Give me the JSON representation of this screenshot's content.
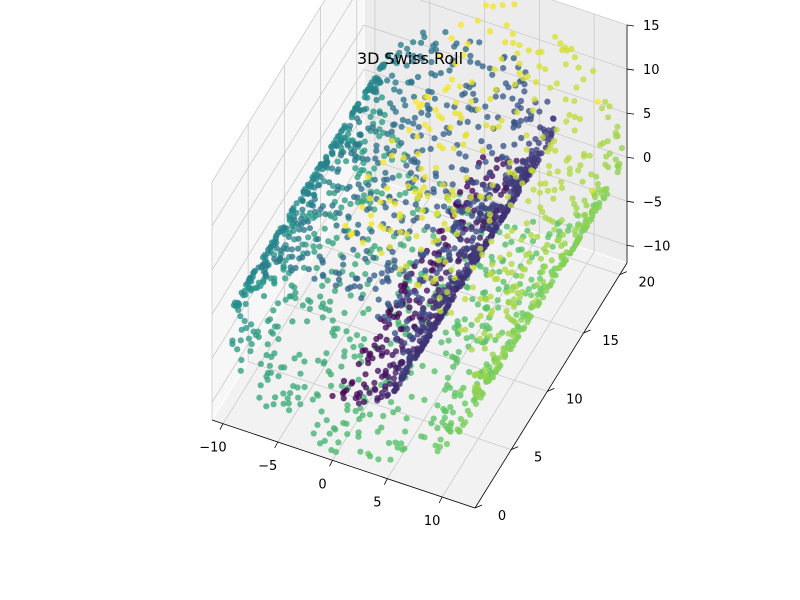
{
  "chart_data": {
    "type": "scatter",
    "projection": "3d",
    "title": "3D Swiss Roll",
    "xlabel": "",
    "ylabel": "",
    "zlabel": "",
    "xlim": [
      -11,
      13
    ],
    "ylim": [
      0,
      21
    ],
    "zlim": [
      -12,
      15
    ],
    "x_ticks": [
      -10,
      -5,
      0,
      5,
      10
    ],
    "y_ticks": [
      0,
      5,
      10,
      15,
      20
    ],
    "z_ticks": [
      -10,
      -5,
      0,
      5,
      10,
      15
    ],
    "x_tick_labels": [
      "−10",
      "−5",
      "0",
      "5",
      "10"
    ],
    "y_tick_labels": [
      "0",
      "5",
      "10",
      "15",
      "20"
    ],
    "z_tick_labels": [
      "−10",
      "−5",
      "0",
      "5",
      "10",
      "15"
    ],
    "grid": true,
    "legend": "none",
    "colormap": "viridis",
    "colormap_stops": [
      "#440154",
      "#3b528b",
      "#21918c",
      "#5ec962",
      "#fde725"
    ],
    "color_by": "roll parameter t",
    "t_range": [
      4.71,
      14.14
    ],
    "y_range": [
      0,
      21
    ],
    "points": [
      {
        "x": 0.0,
        "y": 0.0,
        "z": -4.7,
        "t": 4.71
      },
      {
        "x": 1.5,
        "y": 5.2,
        "z": -4.6,
        "t": 5.0
      },
      {
        "x": 3.0,
        "y": 10.4,
        "z": -3.9,
        "t": 5.4
      },
      {
        "x": 4.6,
        "y": 15.6,
        "z": -2.4,
        "t": 5.8
      },
      {
        "x": 5.2,
        "y": 20.8,
        "z": 0.4,
        "t": 6.3
      },
      {
        "x": 4.2,
        "y": 3.1,
        "z": 3.2,
        "t": 6.8
      },
      {
        "x": 1.2,
        "y": 8.3,
        "z": 6.8,
        "t": 7.5
      },
      {
        "x": -2.5,
        "y": 13.5,
        "z": 7.7,
        "t": 8.2
      },
      {
        "x": -6.5,
        "y": 18.7,
        "z": 5.6,
        "t": 9.0
      },
      {
        "x": -9.0,
        "y": 2.0,
        "z": 1.1,
        "t": 9.5
      },
      {
        "x": -9.3,
        "y": 7.3,
        "z": -3.9,
        "t": 10.0
      },
      {
        "x": -7.5,
        "y": 12.5,
        "z": -8.4,
        "t": 10.7
      },
      {
        "x": -2.5,
        "y": 17.7,
        "z": -11.0,
        "t": 11.3
      },
      {
        "x": 2.6,
        "y": 1.0,
        "z": -11.5,
        "t": 11.8
      },
      {
        "x": 7.6,
        "y": 6.2,
        "z": -9.2,
        "t": 12.4
      },
      {
        "x": 11.1,
        "y": 11.4,
        "z": -4.3,
        "t": 13.0
      },
      {
        "x": 12.7,
        "y": 16.6,
        "z": 1.9,
        "t": 13.6
      },
      {
        "x": 11.0,
        "y": 20.0,
        "z": 6.8,
        "t": 14.14
      }
    ]
  }
}
